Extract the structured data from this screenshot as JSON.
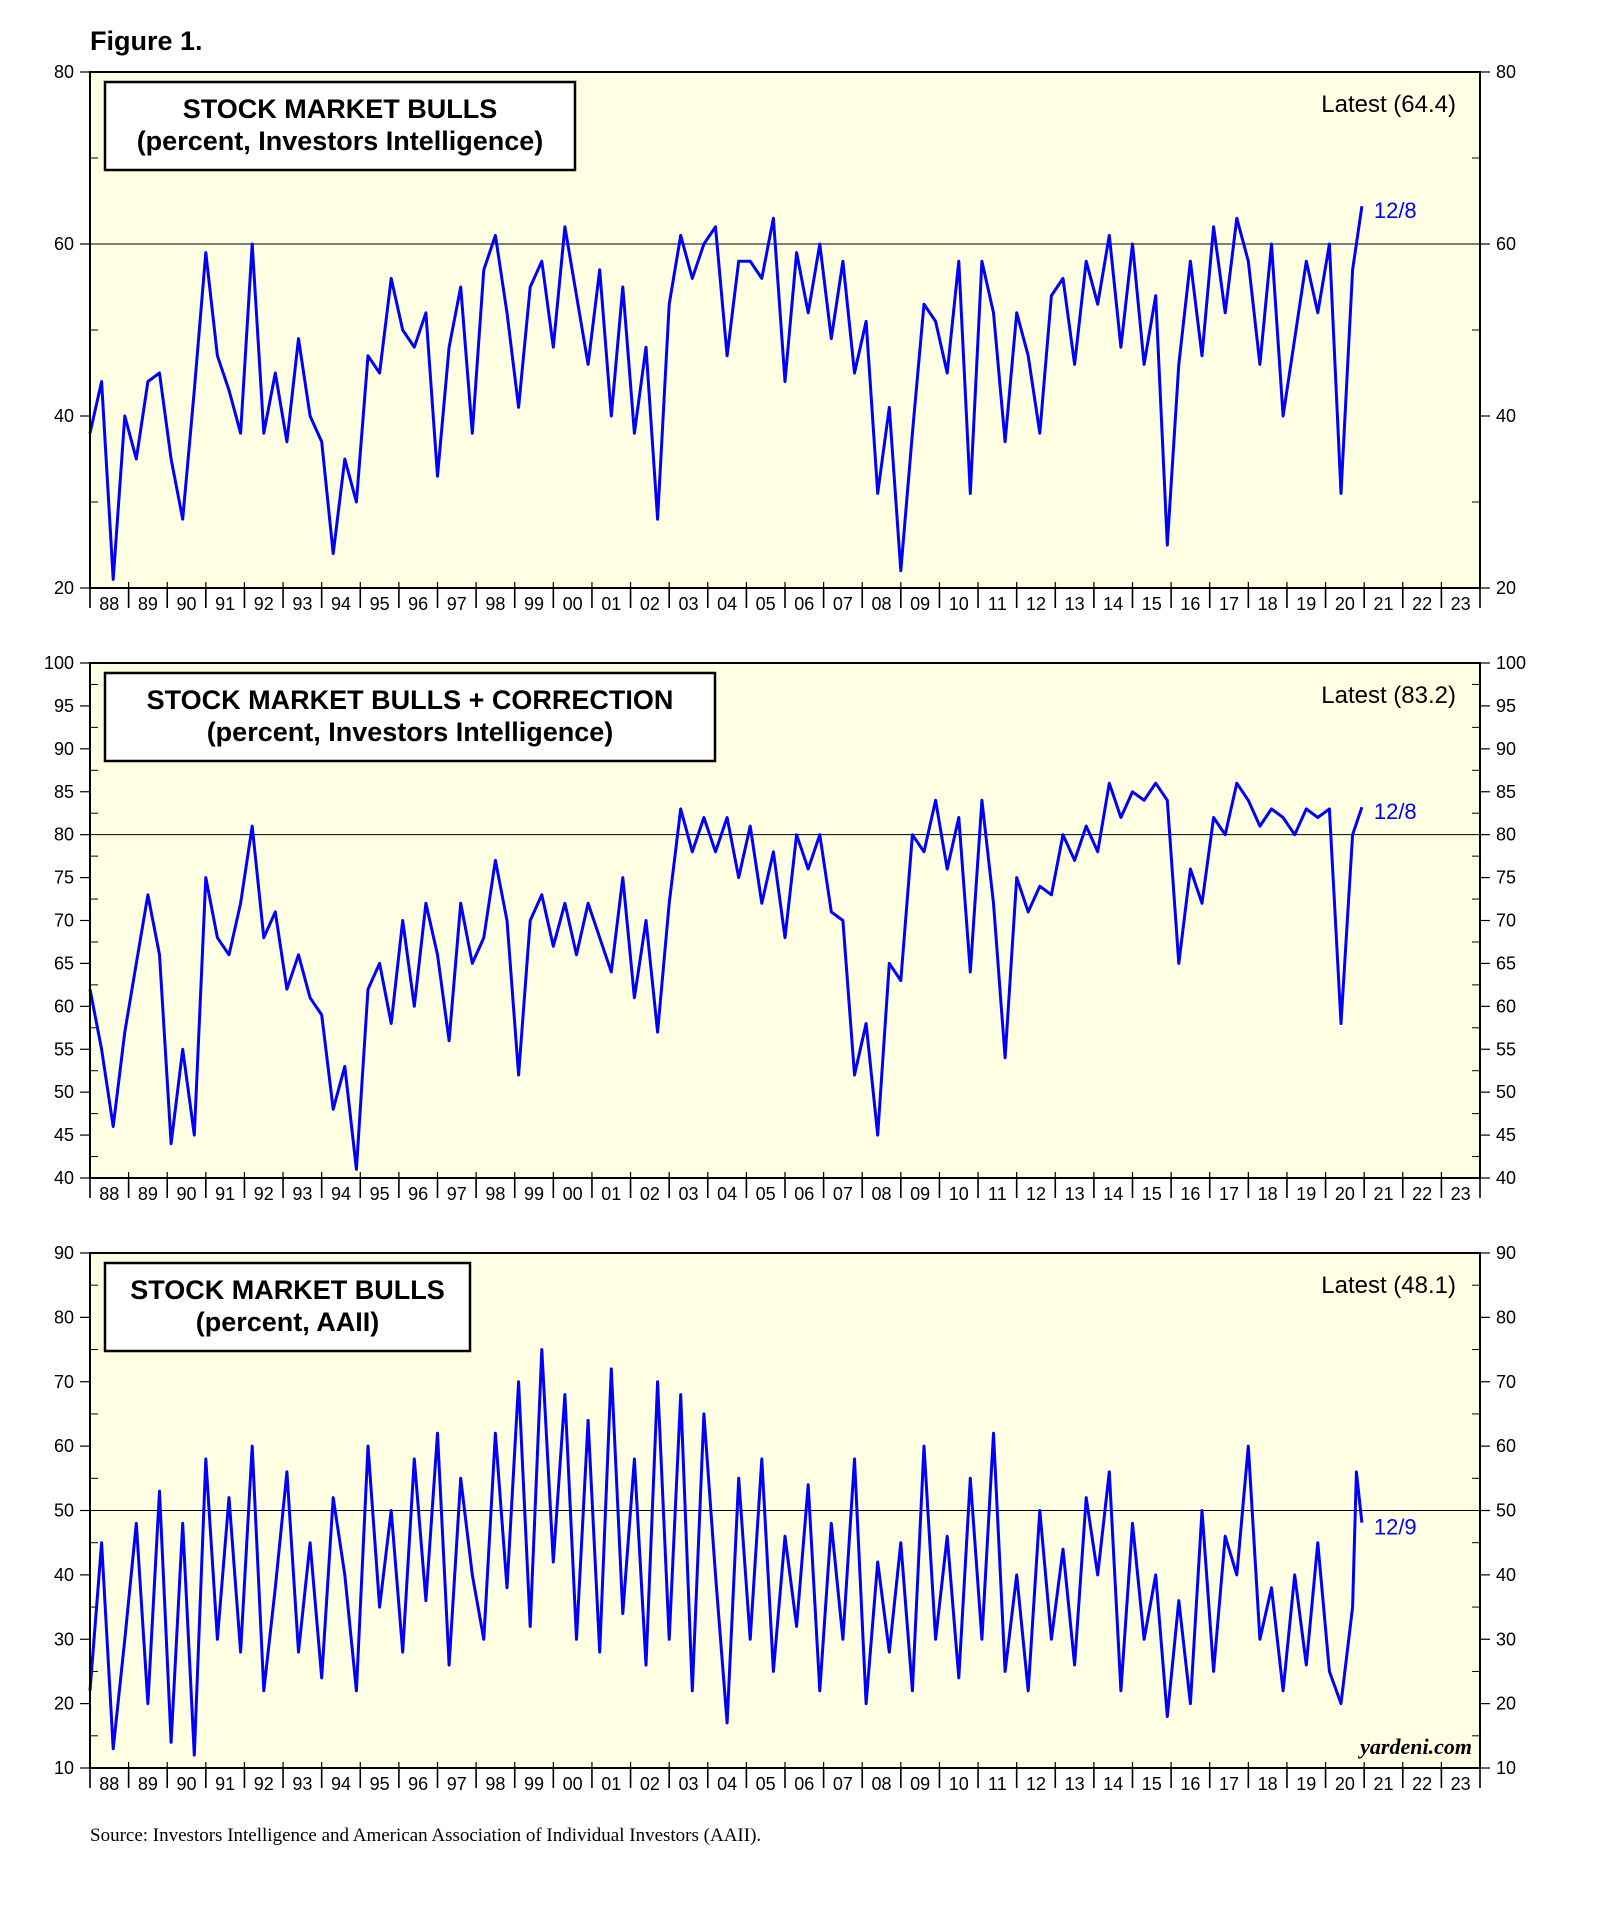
{
  "figure_label": "Figure 1.",
  "source": "Source: Investors Intelligence and American Association of Individual Investors (AAII).",
  "watermark": "yardeni.com",
  "colors": {
    "panel_bg": "#ffffe3",
    "series": "#0000ff",
    "axis": "#000000",
    "text": "#000000"
  },
  "x_tick_labels": [
    "88",
    "89",
    "90",
    "91",
    "92",
    "93",
    "94",
    "95",
    "96",
    "97",
    "98",
    "99",
    "00",
    "01",
    "02",
    "03",
    "04",
    "05",
    "06",
    "07",
    "08",
    "09",
    "10",
    "11",
    "12",
    "13",
    "14",
    "15",
    "16",
    "17",
    "18",
    "19",
    "20",
    "21",
    "22",
    "23"
  ],
  "chart_data": [
    {
      "type": "line",
      "title": "STOCK MARKET BULLS",
      "subtitle": "(percent, Investors Intelligence)",
      "latest_label": "Latest (64.4)",
      "end_label": "12/8",
      "x_range": [
        1988,
        2024
      ],
      "ylim": [
        20,
        80
      ],
      "yticks": [
        20,
        40,
        60,
        80
      ],
      "ref_line": 60,
      "series": [
        {
          "x": [
            1988.0,
            1988.3,
            1988.6,
            1988.9,
            1989.2,
            1989.5,
            1989.8,
            1990.1,
            1990.4,
            1990.7,
            1991.0,
            1991.3,
            1991.6,
            1991.9,
            1992.2,
            1992.5,
            1992.8,
            1993.1,
            1993.4,
            1993.7,
            1994.0,
            1994.3,
            1994.6,
            1994.9,
            1995.2,
            1995.5,
            1995.8,
            1996.1,
            1996.4,
            1996.7,
            1997.0,
            1997.3,
            1997.6,
            1997.9,
            1998.2,
            1998.5,
            1998.8,
            1999.1,
            1999.4,
            1999.7,
            2000.0,
            2000.3,
            2000.6,
            2000.9,
            2001.2,
            2001.5,
            2001.8,
            2002.1,
            2002.4,
            2002.7,
            2003.0,
            2003.3,
            2003.6,
            2003.9,
            2004.2,
            2004.5,
            2004.8,
            2005.1,
            2005.4,
            2005.7,
            2006.0,
            2006.3,
            2006.6,
            2006.9,
            2007.2,
            2007.5,
            2007.8,
            2008.1,
            2008.4,
            2008.7,
            2009.0,
            2009.3,
            2009.6,
            2009.9,
            2010.2,
            2010.5,
            2010.8,
            2011.1,
            2011.4,
            2011.7,
            2012.0,
            2012.3,
            2012.6,
            2012.9,
            2013.2,
            2013.5,
            2013.8,
            2014.1,
            2014.4,
            2014.7,
            2015.0,
            2015.3,
            2015.6,
            2015.9,
            2016.2,
            2016.5,
            2016.8,
            2017.1,
            2017.4,
            2017.7,
            2018.0,
            2018.3,
            2018.6,
            2018.9,
            2019.2,
            2019.5,
            2019.8,
            2020.1,
            2020.4,
            2020.7,
            2020.94
          ],
          "values": [
            38,
            44,
            21,
            40,
            35,
            44,
            45,
            35,
            28,
            43,
            59,
            47,
            43,
            38,
            60,
            38,
            45,
            37,
            49,
            40,
            37,
            24,
            35,
            30,
            47,
            45,
            56,
            50,
            48,
            52,
            33,
            48,
            55,
            38,
            57,
            61,
            52,
            41,
            55,
            58,
            48,
            62,
            54,
            46,
            57,
            40,
            55,
            38,
            48,
            28,
            53,
            61,
            56,
            60,
            62,
            47,
            58,
            58,
            56,
            63,
            44,
            59,
            52,
            60,
            49,
            58,
            45,
            51,
            31,
            41,
            22,
            38,
            53,
            51,
            45,
            58,
            31,
            58,
            52,
            37,
            52,
            47,
            38,
            54,
            56,
            46,
            58,
            53,
            61,
            48,
            60,
            46,
            54,
            25,
            46,
            58,
            47,
            62,
            52,
            63,
            58,
            46,
            60,
            40,
            49,
            58,
            52,
            60,
            31,
            57,
            64.4
          ]
        }
      ]
    },
    {
      "type": "line",
      "title": "STOCK MARKET BULLS + CORRECTION",
      "subtitle": "(percent, Investors Intelligence)",
      "latest_label": "Latest (83.2)",
      "end_label": "12/8",
      "x_range": [
        1988,
        2024
      ],
      "ylim": [
        40,
        100
      ],
      "yticks": [
        40,
        45,
        50,
        55,
        60,
        65,
        70,
        75,
        80,
        85,
        90,
        95,
        100
      ],
      "ref_line": 80,
      "series": [
        {
          "x": [
            1988.0,
            1988.3,
            1988.6,
            1988.9,
            1989.2,
            1989.5,
            1989.8,
            1990.1,
            1990.4,
            1990.7,
            1991.0,
            1991.3,
            1991.6,
            1991.9,
            1992.2,
            1992.5,
            1992.8,
            1993.1,
            1993.4,
            1993.7,
            1994.0,
            1994.3,
            1994.6,
            1994.9,
            1995.2,
            1995.5,
            1995.8,
            1996.1,
            1996.4,
            1996.7,
            1997.0,
            1997.3,
            1997.6,
            1997.9,
            1998.2,
            1998.5,
            1998.8,
            1999.1,
            1999.4,
            1999.7,
            2000.0,
            2000.3,
            2000.6,
            2000.9,
            2001.2,
            2001.5,
            2001.8,
            2002.1,
            2002.4,
            2002.7,
            2003.0,
            2003.3,
            2003.6,
            2003.9,
            2004.2,
            2004.5,
            2004.8,
            2005.1,
            2005.4,
            2005.7,
            2006.0,
            2006.3,
            2006.6,
            2006.9,
            2007.2,
            2007.5,
            2007.8,
            2008.1,
            2008.4,
            2008.7,
            2009.0,
            2009.3,
            2009.6,
            2009.9,
            2010.2,
            2010.5,
            2010.8,
            2011.1,
            2011.4,
            2011.7,
            2012.0,
            2012.3,
            2012.6,
            2012.9,
            2013.2,
            2013.5,
            2013.8,
            2014.1,
            2014.4,
            2014.7,
            2015.0,
            2015.3,
            2015.6,
            2015.9,
            2016.2,
            2016.5,
            2016.8,
            2017.1,
            2017.4,
            2017.7,
            2018.0,
            2018.3,
            2018.6,
            2018.9,
            2019.2,
            2019.5,
            2019.8,
            2020.1,
            2020.4,
            2020.7,
            2020.94
          ],
          "values": [
            62,
            55,
            46,
            57,
            65,
            73,
            66,
            44,
            55,
            45,
            75,
            68,
            66,
            72,
            81,
            68,
            71,
            62,
            66,
            61,
            59,
            48,
            53,
            41,
            62,
            65,
            58,
            70,
            60,
            72,
            66,
            56,
            72,
            65,
            68,
            77,
            70,
            52,
            70,
            73,
            67,
            72,
            66,
            72,
            68,
            64,
            75,
            61,
            70,
            57,
            72,
            83,
            78,
            82,
            78,
            82,
            75,
            81,
            72,
            78,
            68,
            80,
            76,
            80,
            71,
            70,
            52,
            58,
            45,
            65,
            63,
            80,
            78,
            84,
            76,
            82,
            64,
            84,
            72,
            54,
            75,
            71,
            74,
            73,
            80,
            77,
            81,
            78,
            86,
            82,
            85,
            84,
            86,
            84,
            65,
            76,
            72,
            82,
            80,
            86,
            84,
            81,
            83,
            82,
            80,
            83,
            82,
            83,
            58,
            80,
            83.2
          ]
        }
      ]
    },
    {
      "type": "line",
      "title": "STOCK MARKET BULLS",
      "subtitle": "(percent, AAII)",
      "latest_label": "Latest (48.1)",
      "end_label": "12/9",
      "x_range": [
        1988,
        2024
      ],
      "ylim": [
        10,
        90
      ],
      "yticks": [
        10,
        20,
        30,
        40,
        50,
        60,
        70,
        80,
        90
      ],
      "ref_line": 50,
      "series": [
        {
          "x": [
            1988.0,
            1988.3,
            1988.6,
            1988.9,
            1989.2,
            1989.5,
            1989.8,
            1990.1,
            1990.4,
            1990.7,
            1991.0,
            1991.3,
            1991.6,
            1991.9,
            1992.2,
            1992.5,
            1992.8,
            1993.1,
            1993.4,
            1993.7,
            1994.0,
            1994.3,
            1994.6,
            1994.9,
            1995.2,
            1995.5,
            1995.8,
            1996.1,
            1996.4,
            1996.7,
            1997.0,
            1997.3,
            1997.6,
            1997.9,
            1998.2,
            1998.5,
            1998.8,
            1999.1,
            1999.4,
            1999.7,
            2000.0,
            2000.3,
            2000.6,
            2000.9,
            2001.2,
            2001.5,
            2001.8,
            2002.1,
            2002.4,
            2002.7,
            2003.0,
            2003.3,
            2003.6,
            2003.9,
            2004.2,
            2004.5,
            2004.8,
            2005.1,
            2005.4,
            2005.7,
            2006.0,
            2006.3,
            2006.6,
            2006.9,
            2007.2,
            2007.5,
            2007.8,
            2008.1,
            2008.4,
            2008.7,
            2009.0,
            2009.3,
            2009.6,
            2009.9,
            2010.2,
            2010.5,
            2010.8,
            2011.1,
            2011.4,
            2011.7,
            2012.0,
            2012.3,
            2012.6,
            2012.9,
            2013.2,
            2013.5,
            2013.8,
            2014.1,
            2014.4,
            2014.7,
            2015.0,
            2015.3,
            2015.6,
            2015.9,
            2016.2,
            2016.5,
            2016.8,
            2017.1,
            2017.4,
            2017.7,
            2018.0,
            2018.3,
            2018.6,
            2018.9,
            2019.2,
            2019.5,
            2019.8,
            2020.1,
            2020.4,
            2020.7,
            2020.8,
            2020.94
          ],
          "values": [
            22,
            45,
            13,
            30,
            48,
            20,
            53,
            14,
            48,
            12,
            58,
            30,
            52,
            28,
            60,
            22,
            38,
            56,
            28,
            45,
            24,
            52,
            40,
            22,
            60,
            35,
            50,
            28,
            58,
            36,
            62,
            26,
            55,
            40,
            30,
            62,
            38,
            70,
            32,
            75,
            42,
            68,
            30,
            64,
            28,
            72,
            34,
            58,
            26,
            70,
            30,
            68,
            22,
            65,
            40,
            17,
            55,
            30,
            58,
            25,
            46,
            32,
            54,
            22,
            48,
            30,
            58,
            20,
            42,
            28,
            45,
            22,
            60,
            30,
            46,
            24,
            55,
            30,
            62,
            25,
            40,
            22,
            50,
            30,
            44,
            26,
            52,
            40,
            56,
            22,
            48,
            30,
            40,
            18,
            36,
            20,
            50,
            25,
            46,
            40,
            60,
            30,
            38,
            22,
            40,
            26,
            45,
            25,
            20,
            35,
            56,
            48.1
          ]
        }
      ]
    }
  ]
}
